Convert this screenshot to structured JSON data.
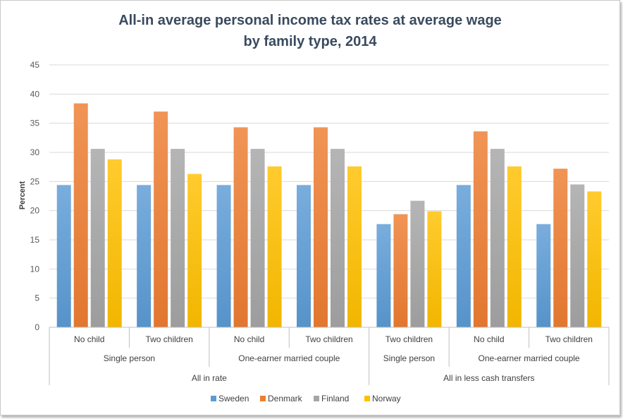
{
  "chart_data": {
    "type": "bar",
    "title": [
      "All-in average personal  income tax rates at average wage",
      "by family type, 2014"
    ],
    "ylabel": "Percent",
    "xlabel": "",
    "ylim": [
      0,
      45
    ],
    "yticks": [
      0,
      5,
      10,
      15,
      20,
      25,
      30,
      35,
      40,
      45
    ],
    "grid": true,
    "legend_position": "bottom",
    "category_levels": {
      "level1": [
        "No child",
        "Two children",
        "No child",
        "Two children",
        "Two children",
        "No child",
        "Two children"
      ],
      "level2": [
        {
          "label": "Single person",
          "span": 2
        },
        {
          "label": "One-earner married couple",
          "span": 2
        },
        {
          "label": "Single person",
          "span": 1
        },
        {
          "label": "One-earner married couple",
          "span": 2
        }
      ],
      "level3": [
        {
          "label": "All in rate",
          "span": 4
        },
        {
          "label": "All in less cash transfers",
          "span": 3
        }
      ]
    },
    "series": [
      {
        "name": "Sweden",
        "color": "#5B9BD5",
        "values": [
          24.4,
          24.4,
          24.4,
          24.4,
          17.7,
          24.4,
          17.7
        ]
      },
      {
        "name": "Denmark",
        "color": "#ED7D31",
        "values": [
          38.4,
          37.0,
          34.3,
          34.3,
          19.4,
          33.6,
          27.2
        ]
      },
      {
        "name": "Finland",
        "color": "#A5A5A5",
        "values": [
          30.6,
          30.6,
          30.6,
          30.6,
          21.7,
          30.6,
          24.5
        ]
      },
      {
        "name": "Norway",
        "color": "#FFC000",
        "values": [
          28.8,
          26.3,
          27.6,
          27.6,
          19.9,
          27.6,
          23.3
        ]
      }
    ]
  }
}
